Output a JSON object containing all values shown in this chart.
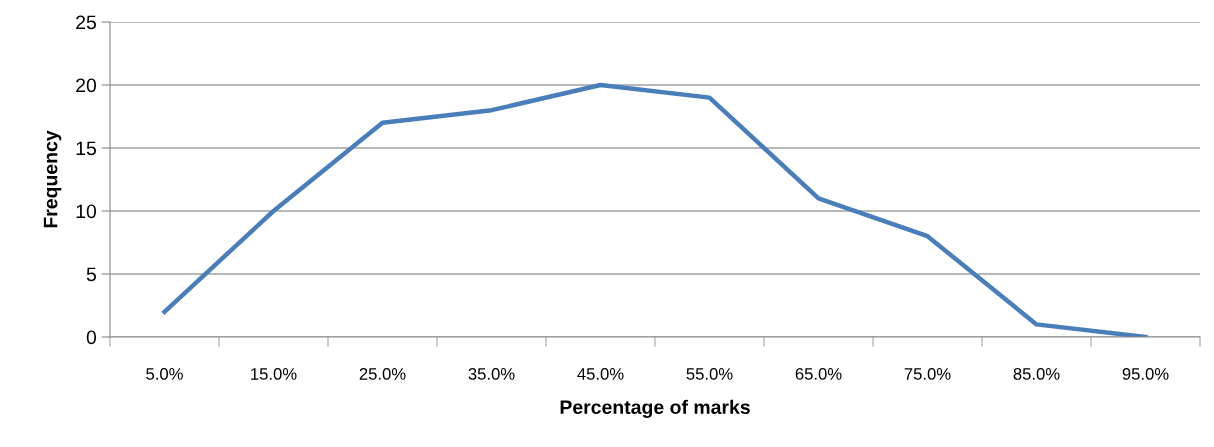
{
  "chart_data": {
    "type": "line",
    "xlabel": "Percentage of marks",
    "ylabel": "Frequency",
    "categories": [
      "5.0%",
      "15.0%",
      "25.0%",
      "35.0%",
      "45.0%",
      "55.0%",
      "65.0%",
      "75.0%",
      "85.0%",
      "95.0%"
    ],
    "series": [
      {
        "color": "#4a7ebb",
        "values": [
          2,
          10,
          17,
          18,
          20,
          19,
          11,
          8,
          1,
          0
        ]
      }
    ],
    "ylim": [
      0,
      25
    ],
    "yticks": [
      0,
      5,
      10,
      15,
      20,
      25
    ],
    "grid": "y",
    "marker": "none",
    "line_style": "solid"
  }
}
